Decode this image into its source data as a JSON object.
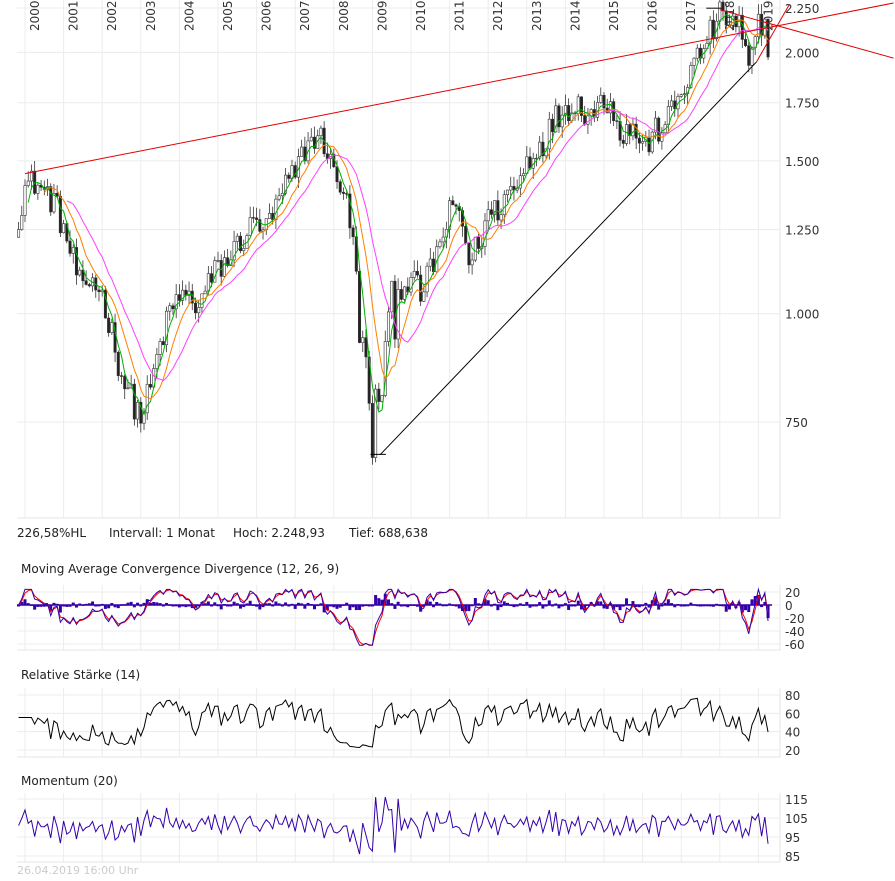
{
  "chart_data": [
    {
      "type": "candlestick",
      "panel": "price",
      "y_scale": "log",
      "interval": "monthly",
      "x_tick_labels": [
        "2000",
        "2001",
        "2002",
        "2003",
        "2004",
        "2005",
        "2006",
        "2007",
        "2008",
        "2009",
        "2010",
        "2011",
        "2012",
        "2013",
        "2014",
        "2015",
        "2016",
        "2017",
        "2018",
        "2019"
      ],
      "y_tick_labels": [
        "2.250",
        "2.000",
        "1.750",
        "1.500",
        "1.250",
        "1.000",
        "750"
      ],
      "y_ticks": [
        2250,
        2000,
        1750,
        1500,
        1250,
        1000,
        750
      ],
      "ylim": [
        600,
        2280
      ],
      "grid": true,
      "quarterly_levels": {
        "start": 1999.75,
        "step_years": 0.25,
        "values": [
          1250,
          1400,
          1420,
          1380,
          1350,
          1250,
          1150,
          1050,
          1100,
          1050,
          950,
          850,
          800,
          760,
          820,
          920,
          1000,
          1050,
          1040,
          1020,
          1080,
          1130,
          1150,
          1200,
          1240,
          1280,
          1250,
          1320,
          1400,
          1450,
          1550,
          1600,
          1580,
          1450,
          1400,
          1200,
          900,
          720,
          850,
          1000,
          1080,
          1100,
          1050,
          1120,
          1200,
          1300,
          1320,
          1150,
          1200,
          1300,
          1320,
          1380,
          1400,
          1500,
          1550,
          1600,
          1680,
          1730,
          1750,
          1720,
          1700,
          1780,
          1720,
          1600,
          1650,
          1550,
          1600,
          1650,
          1700,
          1800,
          1900,
          2000,
          2100,
          2200,
          2180,
          2150,
          1900,
          2100
        ]
      },
      "moving_averages": [
        {
          "color": "#00b000"
        },
        {
          "color": "#ff7f00"
        },
        {
          "color": "#ff40ff"
        }
      ],
      "trendlines": [
        {
          "from": [
            2000.0,
            1450
          ],
          "to": [
            2022.5,
            2280
          ],
          "color": "#e00000"
        },
        {
          "from": [
            2018.0,
            2240
          ],
          "to": [
            2022.5,
            1970
          ],
          "color": "#e00000"
        },
        {
          "from": [
            2009.2,
            688
          ],
          "to": [
            2018.95,
            1950
          ],
          "color": "#000000"
        },
        {
          "from": [
            2018.95,
            1950
          ],
          "to": [
            2019.8,
            2270
          ],
          "color": "#e00000"
        }
      ],
      "high": 2248.93,
      "low": 688.638
    },
    {
      "type": "line",
      "panel": "macd",
      "title": "Moving Average Convergence Divergence (12, 26, 9)",
      "y_ticks": [
        20,
        0,
        -20,
        -40,
        -60
      ],
      "y_tick_labels": [
        "20",
        "0",
        "-20",
        "-40",
        "-60"
      ],
      "series_colors": {
        "macd": "#3300aa",
        "signal": "#ff0000",
        "histogram": "#3300aa"
      }
    },
    {
      "type": "line",
      "panel": "rsi",
      "title": "Relative Stärke (14)",
      "y_ticks": [
        80,
        60,
        40,
        20
      ],
      "y_tick_labels": [
        "80",
        "60",
        "40",
        "20"
      ],
      "colors": {
        "line": "#000000",
        "overbought": "#cc0000",
        "oversold": "#008800"
      }
    },
    {
      "type": "line",
      "panel": "momentum",
      "title": "Momentum (20)",
      "y_ticks": [
        115,
        105,
        95,
        85
      ],
      "y_tick_labels": [
        "115",
        "105",
        "95",
        "85"
      ],
      "colors": {
        "line": "#3300aa"
      }
    }
  ],
  "info": {
    "range": "226,58%HL",
    "interval": "Intervall: 1 Monat",
    "high": "Hoch:  2.248,93",
    "low": "Tief:  688,638"
  },
  "footer": "26.04.2019 16:00 Uhr"
}
